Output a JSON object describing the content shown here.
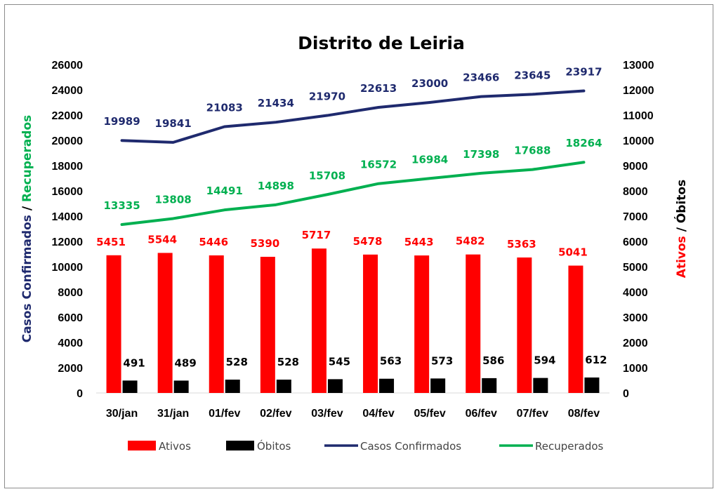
{
  "chart_data": {
    "type": "bar",
    "title": "Distrito de Leiria",
    "categories": [
      "30/jan",
      "31/jan",
      "01/fev",
      "02/fev",
      "03/fev",
      "04/fev",
      "05/fev",
      "06/fev",
      "07/fev",
      "08/fev"
    ],
    "left_axis": {
      "label_parts": [
        {
          "text": "Casos Confirmados",
          "color": "#1f2a6e"
        },
        {
          "text": " / ",
          "color": "#000000"
        },
        {
          "text": "Recuperados",
          "color": "#00b050"
        }
      ],
      "ylim": [
        0,
        26000
      ],
      "ticks": [
        0,
        2000,
        4000,
        6000,
        8000,
        10000,
        12000,
        14000,
        16000,
        18000,
        20000,
        22000,
        24000,
        26000
      ]
    },
    "right_axis": {
      "label_parts": [
        {
          "text": "Ativos",
          "color": "#ff0000"
        },
        {
          "text": " / Óbitos",
          "color": "#000000"
        }
      ],
      "ylim": [
        0,
        13000
      ],
      "ticks": [
        0,
        1000,
        2000,
        3000,
        4000,
        5000,
        6000,
        7000,
        8000,
        9000,
        10000,
        11000,
        12000,
        13000
      ]
    },
    "series": [
      {
        "name": "Ativos",
        "kind": "bar",
        "axis": "right",
        "color": "#ff0000",
        "label_color": "#ff0000",
        "values": [
          5451,
          5544,
          5446,
          5390,
          5717,
          5478,
          5443,
          5482,
          5363,
          5041
        ]
      },
      {
        "name": "Óbitos",
        "kind": "bar",
        "axis": "right",
        "color": "#000000",
        "label_color": "#000000",
        "values": [
          491,
          489,
          528,
          528,
          545,
          563,
          573,
          586,
          594,
          612
        ]
      },
      {
        "name": "Casos Confirmados",
        "kind": "line",
        "axis": "left",
        "color": "#1f2a6e",
        "label_color": "#1f2a6e",
        "values": [
          19989,
          19841,
          21083,
          21434,
          21970,
          22613,
          23000,
          23466,
          23645,
          23917
        ]
      },
      {
        "name": "Recuperados",
        "kind": "line",
        "axis": "left",
        "color": "#00b050",
        "label_color": "#00b050",
        "values": [
          13335,
          13808,
          14491,
          14898,
          15708,
          16572,
          16984,
          17398,
          17688,
          18264
        ]
      }
    ],
    "grid": false,
    "legend_position": "bottom"
  }
}
